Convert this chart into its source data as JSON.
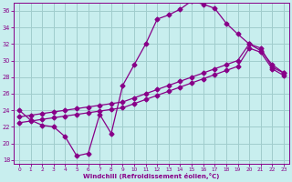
{
  "xlabel": "Windchill (Refroidissement éolien,°C)",
  "bg_color": "#c8eeee",
  "grid_color": "#a0cccc",
  "line_color": "#880088",
  "xlim_min": -0.5,
  "xlim_max": 23.5,
  "ylim_min": 17.5,
  "ylim_max": 37.0,
  "xticks": [
    0,
    1,
    2,
    3,
    4,
    5,
    6,
    7,
    8,
    9,
    10,
    11,
    12,
    13,
    14,
    15,
    16,
    17,
    18,
    19,
    20,
    21,
    22,
    23
  ],
  "yticks": [
    18,
    20,
    22,
    24,
    26,
    28,
    30,
    32,
    34,
    36
  ],
  "line1_x": [
    0,
    1,
    2,
    3,
    4,
    5,
    6,
    7,
    8,
    9,
    10,
    11,
    12,
    13,
    14,
    15,
    16,
    17,
    18,
    19,
    20,
    21,
    22,
    23
  ],
  "line1_y": [
    24.0,
    22.8,
    22.2,
    22.0,
    20.8,
    18.5,
    18.8,
    23.5,
    21.2,
    27.0,
    29.5,
    32.0,
    35.0,
    35.5,
    36.2,
    37.2,
    36.8,
    36.3,
    34.5,
    33.2,
    32.0,
    31.2,
    29.5,
    28.5
  ],
  "line2_x": [
    0,
    1,
    2,
    3,
    4,
    5,
    6,
    7,
    8,
    9,
    10,
    11,
    12,
    13,
    14,
    15,
    16,
    17,
    18,
    19,
    20,
    21,
    22,
    23
  ],
  "line2_y": [
    23.2,
    23.4,
    23.6,
    23.8,
    24.0,
    24.2,
    24.4,
    24.6,
    24.8,
    25.0,
    25.5,
    26.0,
    26.5,
    27.0,
    27.5,
    28.0,
    28.5,
    29.0,
    29.5,
    30.0,
    32.0,
    31.5,
    29.2,
    28.5
  ],
  "line3_x": [
    0,
    1,
    2,
    3,
    4,
    5,
    6,
    7,
    8,
    9,
    10,
    11,
    12,
    13,
    14,
    15,
    16,
    17,
    18,
    19,
    20,
    21,
    22,
    23
  ],
  "line3_y": [
    22.5,
    22.7,
    22.9,
    23.1,
    23.3,
    23.5,
    23.7,
    23.9,
    24.1,
    24.3,
    24.8,
    25.3,
    25.8,
    26.3,
    26.8,
    27.3,
    27.8,
    28.3,
    28.8,
    29.3,
    31.5,
    31.0,
    29.0,
    28.2
  ]
}
